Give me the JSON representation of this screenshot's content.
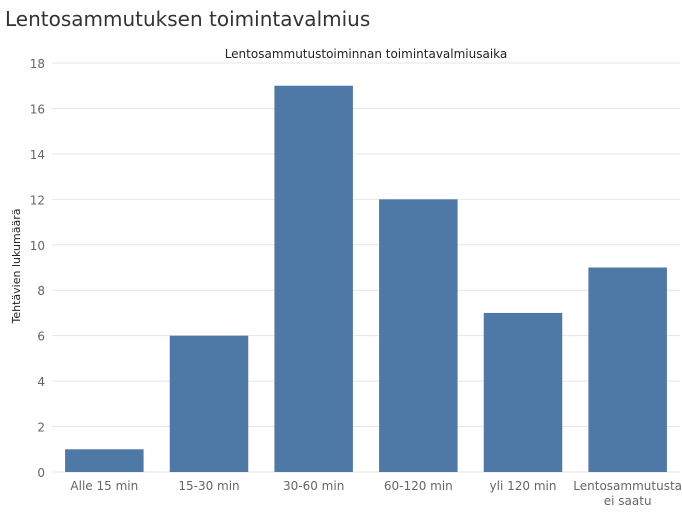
{
  "page": {
    "title": "Lentosammutuksen toimintavalmius"
  },
  "chart_data": {
    "type": "bar",
    "title": "Lentosammutustoiminnan toimintavalmiusaika",
    "xlabel": "",
    "ylabel": "Tehtävien lukumäärä",
    "ylim": [
      0,
      18
    ],
    "yticks": [
      0,
      2,
      4,
      6,
      8,
      10,
      12,
      14,
      16,
      18
    ],
    "grid": true,
    "color": "#4e79a7",
    "categories": [
      [
        "Alle 15 min"
      ],
      [
        "15-30 min"
      ],
      [
        "30-60 min"
      ],
      [
        "60-120 min"
      ],
      [
        "yli 120 min"
      ],
      [
        "Lentosammutusta",
        "ei saatu"
      ]
    ],
    "values": [
      1,
      6,
      17,
      12,
      7,
      9
    ]
  }
}
